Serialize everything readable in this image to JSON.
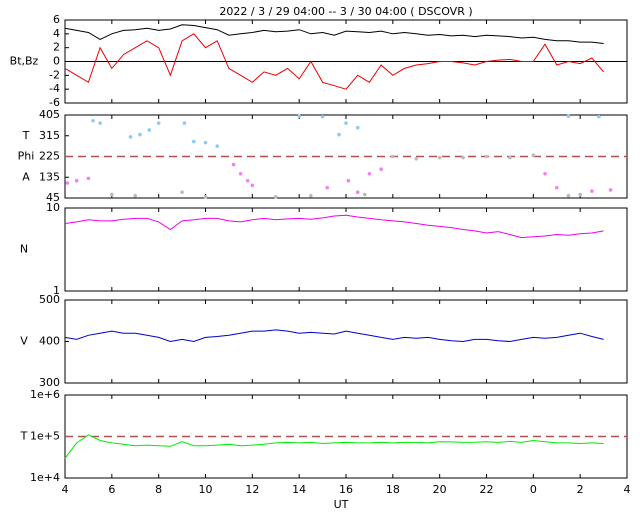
{
  "chart_data": [
    {
      "type": "line",
      "title": "2022 /  3 / 29   04:00 -- 3 / 30   04:00 ( DSCOVR )",
      "ylabels": [
        "Bt,Bz"
      ],
      "xlim": [
        4,
        28
      ],
      "ylim": [
        -6,
        6
      ],
      "yticks": [
        6,
        4,
        2,
        0,
        -2,
        -4,
        -6
      ],
      "reference": [
        {
          "value": 0,
          "color": "#000000",
          "dashed": false
        }
      ],
      "x": [
        4,
        4.5,
        5,
        5.5,
        6,
        6.5,
        7,
        7.5,
        8,
        8.5,
        9,
        9.5,
        10,
        10.5,
        11,
        11.5,
        12,
        12.5,
        13,
        13.5,
        14,
        14.5,
        15,
        15.5,
        16,
        16.5,
        17,
        17.5,
        18,
        18.5,
        19,
        19.5,
        20,
        20.5,
        21,
        21.5,
        22,
        22.5,
        23,
        23.5,
        24,
        24.5,
        25,
        25.5,
        26,
        26.5,
        27
      ],
      "series": [
        {
          "color": "#000000",
          "values": [
            4.8,
            4.5,
            4.2,
            3.2,
            4.0,
            4.5,
            4.6,
            4.8,
            4.5,
            4.7,
            5.3,
            5.2,
            4.9,
            4.6,
            3.8,
            4.0,
            4.2,
            4.5,
            4.3,
            4.4,
            4.6,
            4.0,
            4.2,
            3.8,
            4.4,
            4.3,
            4.2,
            4.4,
            4.0,
            4.2,
            4.0,
            3.8,
            3.9,
            3.7,
            3.8,
            3.6,
            3.8,
            3.7,
            3.6,
            3.4,
            3.5,
            3.2,
            3.0,
            3.0,
            2.8,
            2.8,
            2.6
          ]
        },
        {
          "color": "#ee0000",
          "values": [
            -1,
            -2,
            -3,
            2,
            -1,
            1,
            2,
            3,
            2,
            -2,
            3,
            4,
            2,
            3,
            -1,
            -2,
            -3,
            -1.5,
            -2,
            -1,
            -2.5,
            0,
            -3,
            -3.5,
            -4,
            -2,
            -3,
            -0.5,
            -2,
            -1,
            -0.5,
            -0.3,
            0,
            0,
            -0.2,
            -0.5,
            0,
            0.2,
            0.3,
            0,
            0,
            2.5,
            -0.5,
            0,
            -0.3,
            0.5,
            -1.5
          ]
        }
      ]
    },
    {
      "type": "scatter",
      "ylabels": [
        "T",
        "Phi",
        "A"
      ],
      "xlim": [
        4,
        28
      ],
      "ylim": [
        45,
        405
      ],
      "yticks": [
        405,
        315,
        225,
        135,
        45
      ],
      "reference": [
        {
          "value": 225,
          "color": "#b05050",
          "dashed": true
        }
      ],
      "series": [
        {
          "color": "#88ccee",
          "x": [
            5.2,
            5.5,
            6.8,
            7.2,
            7.6,
            8.0,
            9.1,
            9.5,
            10,
            10.5,
            14,
            15,
            15.7,
            16,
            16.5,
            25.5,
            26.8
          ],
          "values": [
            380,
            370,
            310,
            320,
            340,
            370,
            370,
            290,
            285,
            270,
            400,
            398,
            320,
            370,
            350,
            400,
            398
          ]
        },
        {
          "color": "#ee82ee",
          "x": [
            4.1,
            4.5,
            5,
            11.2,
            11.5,
            11.8,
            12,
            15.2,
            16.1,
            16.5,
            17,
            17.5,
            24.5,
            25,
            26.5,
            27.3
          ],
          "values": [
            110,
            120,
            130,
            190,
            150,
            120,
            100,
            90,
            120,
            70,
            150,
            170,
            150,
            90,
            75,
            80
          ]
        },
        {
          "color": "#bbbbbb",
          "x": [
            6,
            7,
            9,
            10,
            13,
            14.5,
            16.8,
            18,
            19,
            20,
            21,
            22,
            23,
            24,
            25.5,
            26
          ],
          "values": [
            60,
            55,
            70,
            50,
            50,
            55,
            60,
            225,
            215,
            220,
            220,
            225,
            220,
            230,
            55,
            60
          ]
        }
      ]
    },
    {
      "type": "line",
      "ylabels": [
        "N"
      ],
      "log": true,
      "xlim": [
        4,
        28
      ],
      "ylim": [
        1,
        10
      ],
      "yticks": [
        10,
        1
      ],
      "x": [
        4,
        4.5,
        5,
        5.5,
        6,
        6.5,
        7,
        7.5,
        8,
        8.5,
        9,
        9.5,
        10,
        10.5,
        11,
        11.5,
        12,
        12.5,
        13,
        13.5,
        14,
        14.5,
        15,
        15.5,
        16,
        16.5,
        17,
        17.5,
        18,
        18.5,
        19,
        19.5,
        20,
        20.5,
        21,
        21.5,
        22,
        22.5,
        23,
        23.5,
        24,
        24.5,
        25,
        25.5,
        26,
        26.5,
        27
      ],
      "series": [
        {
          "color": "#ee00ee",
          "values": [
            6.5,
            6.8,
            7.2,
            7,
            7,
            7.3,
            7.5,
            7.5,
            6.8,
            5.5,
            7,
            7.2,
            7.5,
            7.5,
            7,
            6.8,
            7.2,
            7.5,
            7.2,
            7.4,
            7.5,
            7.3,
            7.6,
            8,
            8.2,
            7.8,
            7.5,
            7.2,
            7,
            6.8,
            6.5,
            6.2,
            6,
            5.8,
            5.5,
            5.3,
            5,
            5.2,
            4.8,
            4.4,
            4.5,
            4.6,
            4.8,
            4.7,
            4.9,
            5,
            5.3
          ]
        }
      ]
    },
    {
      "type": "line",
      "ylabels": [
        "V"
      ],
      "xlim": [
        4,
        28
      ],
      "ylim": [
        300,
        500
      ],
      "yticks": [
        500,
        400,
        300
      ],
      "x": [
        4,
        4.5,
        5,
        5.5,
        6,
        6.5,
        7,
        7.5,
        8,
        8.5,
        9,
        9.5,
        10,
        10.5,
        11,
        11.5,
        12,
        12.5,
        13,
        13.5,
        14,
        14.5,
        15,
        15.5,
        16,
        16.5,
        17,
        17.5,
        18,
        18.5,
        19,
        19.5,
        20,
        20.5,
        21,
        21.5,
        22,
        22.5,
        23,
        23.5,
        24,
        24.5,
        25,
        25.5,
        26,
        26.5,
        27
      ],
      "series": [
        {
          "color": "#0000cc",
          "values": [
            410,
            405,
            415,
            420,
            425,
            420,
            420,
            415,
            410,
            400,
            405,
            400,
            410,
            412,
            415,
            420,
            425,
            425,
            428,
            425,
            420,
            422,
            420,
            418,
            425,
            420,
            415,
            410,
            405,
            410,
            408,
            410,
            405,
            402,
            400,
            405,
            405,
            402,
            400,
            405,
            410,
            408,
            410,
            415,
            420,
            412,
            405
          ]
        }
      ]
    },
    {
      "type": "line",
      "ylabels": [
        "T"
      ],
      "log": true,
      "xlabel": "UT",
      "xlim": [
        4,
        28
      ],
      "ylim": [
        10000,
        1000000
      ],
      "yticks": [
        {
          "value": 1000000,
          "label": "1e+6"
        },
        {
          "value": 100000,
          "label": "1e+5"
        },
        {
          "value": 10000,
          "label": "1e+4"
        }
      ],
      "xticks": [
        4,
        6,
        8,
        10,
        12,
        14,
        16,
        18,
        20,
        22,
        {
          "value": 24,
          "label": "0"
        },
        {
          "value": 26,
          "label": "2"
        },
        {
          "value": 28,
          "label": "4"
        }
      ],
      "reference": [
        {
          "value": 100000,
          "color": "#b05050",
          "dashed": true
        }
      ],
      "x": [
        4,
        4.5,
        5,
        5.5,
        6,
        6.5,
        7,
        7.5,
        8,
        8.5,
        9,
        9.5,
        10,
        10.5,
        11,
        11.5,
        12,
        12.5,
        13,
        13.5,
        14,
        14.5,
        15,
        15.5,
        16,
        16.5,
        17,
        17.5,
        18,
        18.5,
        19,
        19.5,
        20,
        20.5,
        21,
        21.5,
        22,
        22.5,
        23,
        23.5,
        24,
        24.5,
        25,
        25.5,
        26,
        26.5,
        27
      ],
      "series": [
        {
          "color": "#00ee00",
          "values": [
            30000,
            70000,
            110000,
            80000,
            70000,
            65000,
            60000,
            62000,
            60000,
            58000,
            75000,
            60000,
            60000,
            62000,
            65000,
            60000,
            62000,
            65000,
            70000,
            72000,
            70000,
            72000,
            68000,
            70000,
            72000,
            70000,
            70000,
            72000,
            70000,
            72000,
            72000,
            70000,
            75000,
            74000,
            72000,
            73000,
            75000,
            72000,
            76000,
            72000,
            80000,
            75000,
            70000,
            70000,
            68000,
            70000,
            68000
          ]
        }
      ]
    }
  ]
}
